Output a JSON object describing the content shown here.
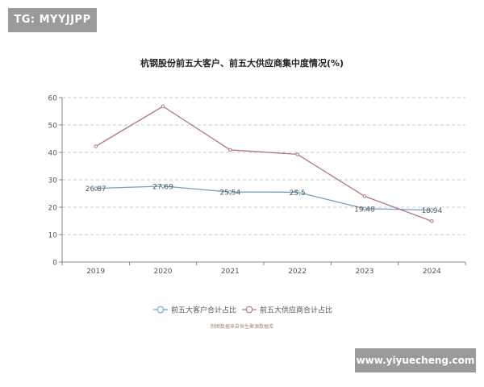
{
  "watermark_tl": "TG: MYYJJPP",
  "watermark_br": "www.yiyuecheng.com",
  "chart_data": {
    "type": "line",
    "title": "杭钢股份前五大客户、前五大供应商集中度情况(%)",
    "categories": [
      "2019",
      "2020",
      "2021",
      "2022",
      "2023",
      "2024"
    ],
    "ylim": [
      0,
      60
    ],
    "yticks": [
      0,
      10,
      20,
      30,
      40,
      50,
      60
    ],
    "grid": true,
    "series": [
      {
        "name": "前五大客户合计占比",
        "values": [
          26.87,
          27.69,
          25.54,
          25.5,
          19.48,
          18.94
        ],
        "labels": [
          "26.87",
          "27.69",
          "25.54",
          "25.5",
          "19.48",
          "18.94"
        ],
        "color": "#6fa3c1"
      },
      {
        "name": "前五大供应商合计占比",
        "values": [
          42.2,
          56.8,
          40.9,
          39.3,
          24.0,
          14.9
        ],
        "labels": null,
        "color": "#b0718f"
      }
    ],
    "legend_position": "bottom",
    "source": "制图数据来自恒生聚源数据库",
    "colors": {
      "axis": "#666666",
      "grid": "#bbbbbb",
      "text": "#555555",
      "title": "#222222",
      "source": "#a08c6a"
    }
  }
}
